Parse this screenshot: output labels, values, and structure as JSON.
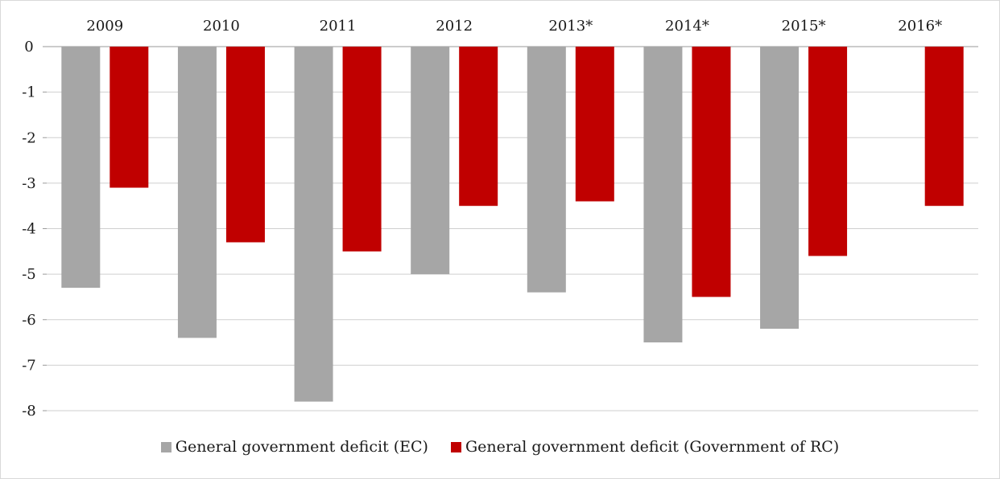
{
  "chart_data": {
    "type": "bar",
    "title": "",
    "xlabel": "",
    "ylabel": "",
    "categories": [
      "2009",
      "2010",
      "2011",
      "2012",
      "2013*",
      "2014*",
      "2015*",
      "2016*"
    ],
    "series": [
      {
        "name": "General government deficit (EC)",
        "color": "#a6a6a6",
        "values": [
          -5.3,
          -6.4,
          -7.8,
          -5.0,
          -5.4,
          -6.5,
          -6.2,
          null
        ]
      },
      {
        "name": "General government deficit (Government of RC)",
        "color": "#c00000",
        "values": [
          -3.1,
          -4.3,
          -4.5,
          -3.5,
          -3.4,
          -5.5,
          -4.6,
          -3.5
        ]
      }
    ],
    "ylim": [
      -8,
      0
    ],
    "yticks": [
      "0",
      "-1",
      "-2",
      "-3",
      "-4",
      "-5",
      "-6",
      "-7",
      "-8"
    ],
    "grid": true,
    "category_axis_position": "top",
    "legend_position": "bottom"
  }
}
